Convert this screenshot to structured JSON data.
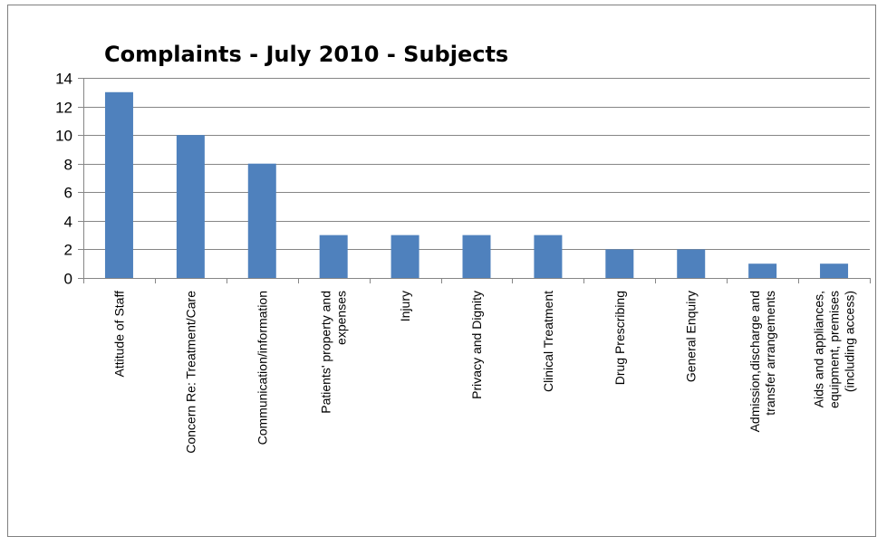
{
  "chart_data": {
    "type": "bar",
    "title": "Complaints - July 2010 - Subjects",
    "xlabel": "",
    "ylabel": "",
    "ylim": [
      0,
      14
    ],
    "yticks": [
      0,
      2,
      4,
      6,
      8,
      10,
      12,
      14
    ],
    "grid": true,
    "legend": "none",
    "bar_color": "#4f81bd",
    "categories": [
      [
        "Attitude of Staff"
      ],
      [
        "Concern Re: Treatment/Care"
      ],
      [
        "Communication/information"
      ],
      [
        "Patients' property and",
        "expenses"
      ],
      [
        "Injury"
      ],
      [
        "Privacy and Dignity"
      ],
      [
        "Clinical Treatment"
      ],
      [
        "Drug Prescribing"
      ],
      [
        "General Enquiry"
      ],
      [
        "Admission,discharge and",
        "transfer arrangements"
      ],
      [
        "Aids and appliances,",
        "equipment, premises",
        "(including access)"
      ]
    ],
    "values": [
      13,
      10,
      8,
      3,
      3,
      3,
      3,
      2,
      2,
      1,
      1
    ]
  }
}
